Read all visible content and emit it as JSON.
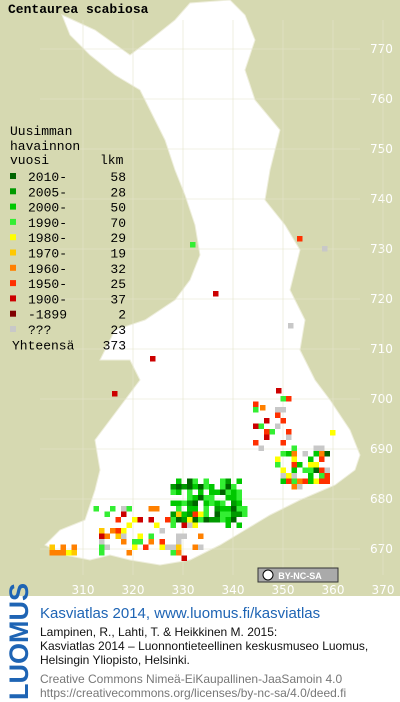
{
  "title": "Centaurea scabiosa",
  "legend": {
    "heading": [
      "Uusimman",
      "havainnon"
    ],
    "col_year": "vuosi",
    "col_count": "lkm",
    "rows": [
      {
        "label": "2010-",
        "count": 58,
        "color": "#006400"
      },
      {
        "label": "2005-",
        "count": 28,
        "color": "#009a00"
      },
      {
        "label": "2000-",
        "count": 50,
        "color": "#00c800"
      },
      {
        "label": "1990-",
        "count": 70,
        "color": "#33ee33"
      },
      {
        "label": "1980-",
        "count": 29,
        "color": "#ffff00"
      },
      {
        "label": "1970-",
        "count": 19,
        "color": "#ffc800"
      },
      {
        "label": "1960-",
        "count": 32,
        "color": "#ff8000"
      },
      {
        "label": "1950-",
        "count": 25,
        "color": "#ff3000"
      },
      {
        "label": "1900-",
        "count": 37,
        "color": "#cc0000"
      },
      {
        "label": "-1899",
        "count": 2,
        "color": "#800000"
      },
      {
        "label": "???",
        "count": 23,
        "color": "#c8c8c8"
      }
    ],
    "total_label": "Yhteensä",
    "total": 373
  },
  "grid": {
    "north": [
      770,
      760,
      750,
      740,
      730,
      720,
      710,
      700,
      690,
      680,
      670
    ],
    "east": [
      310,
      320,
      330,
      340,
      350,
      360,
      370
    ]
  },
  "badge": "BY-NC-SA",
  "footer": {
    "brand": "LUOMUS",
    "link": "Kasviatlas 2014, www.luomus.fi/kasviatlas",
    "citation": [
      "Lampinen, R., Lahti, T. & Heikkinen M. 2015:",
      "Kasviatlas 2014 – Luonnontieteellinen keskusmuseo Luomus,",
      "Helsingin Yliopisto, Helsinki."
    ],
    "license": [
      "Creative Commons Nimeä-EiKaupallinen-JaaSamoin 4.0",
      "https://creativecommons.org/licenses/by-nc-sa/4.0/deed.fi"
    ]
  }
}
